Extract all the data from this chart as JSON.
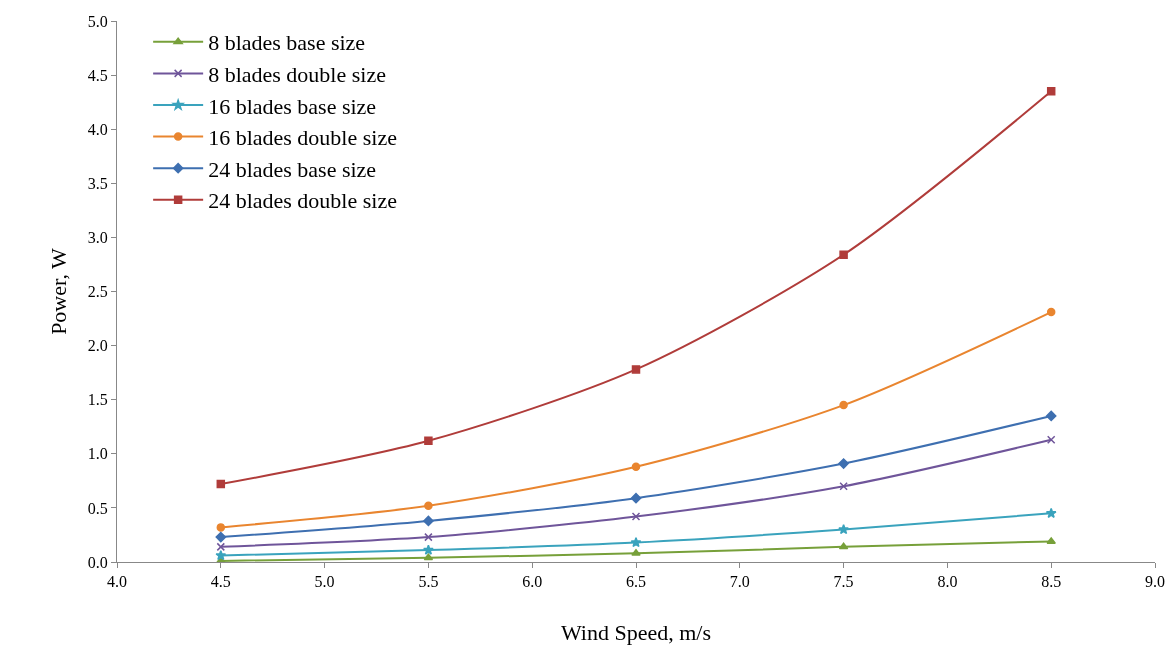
{
  "chart_data": {
    "type": "line",
    "xlabel": "Wind Speed, m/s",
    "ylabel": "Power, W",
    "x": [
      4.5,
      5.5,
      6.5,
      7.5,
      8.5
    ],
    "series": [
      {
        "name": "8 blades base size",
        "color": "#77a03a",
        "marker": "triangle",
        "values": [
          0.01,
          0.04,
          0.08,
          0.14,
          0.19
        ]
      },
      {
        "name": "8 blades double size",
        "color": "#6f559a",
        "marker": "cross",
        "values": [
          0.14,
          0.23,
          0.42,
          0.7,
          1.13
        ]
      },
      {
        "name": "16 blades base size",
        "color": "#3aa3bd",
        "marker": "star",
        "values": [
          0.06,
          0.11,
          0.18,
          0.3,
          0.45
        ]
      },
      {
        "name": "16 blades double size",
        "color": "#e9852f",
        "marker": "circle",
        "values": [
          0.32,
          0.52,
          0.88,
          1.45,
          2.31
        ]
      },
      {
        "name": "24 blades base size",
        "color": "#3e6fb0",
        "marker": "diamond",
        "values": [
          0.23,
          0.38,
          0.59,
          0.91,
          1.35
        ]
      },
      {
        "name": "24 blades double size",
        "color": "#b03c3a",
        "marker": "square",
        "values": [
          0.72,
          1.12,
          1.78,
          2.84,
          4.35
        ]
      }
    ],
    "xlim": [
      4,
      9
    ],
    "xticks": [
      {
        "value": 4,
        "label": "4.0"
      },
      {
        "value": 4.5,
        "label": "4.5"
      },
      {
        "value": 5,
        "label": "5.0"
      },
      {
        "value": 5.5,
        "label": "5.5"
      },
      {
        "value": 6,
        "label": "6.0"
      },
      {
        "value": 6.5,
        "label": "6.5"
      },
      {
        "value": 7,
        "label": "7.0"
      },
      {
        "value": 7.5,
        "label": "7.5"
      },
      {
        "value": 8,
        "label": "8.0"
      },
      {
        "value": 8.5,
        "label": "8.5"
      },
      {
        "value": 9,
        "label": "9.0"
      }
    ],
    "ylim": [
      0,
      5
    ],
    "yticks": [
      {
        "value": 0,
        "label": "0.0"
      },
      {
        "value": 0.5,
        "label": "0.5"
      },
      {
        "value": 1,
        "label": "1.0"
      },
      {
        "value": 1.5,
        "label": "1.5"
      },
      {
        "value": 2,
        "label": "2.0"
      },
      {
        "value": 2.5,
        "label": "2.5"
      },
      {
        "value": 3,
        "label": "3.0"
      },
      {
        "value": 3.5,
        "label": "3.5"
      },
      {
        "value": 4,
        "label": "4.0"
      },
      {
        "value": 4.5,
        "label": "4.5"
      },
      {
        "value": 5,
        "label": "5.0"
      }
    ],
    "grid": false,
    "legend": "top left",
    "line_style": "solid"
  }
}
